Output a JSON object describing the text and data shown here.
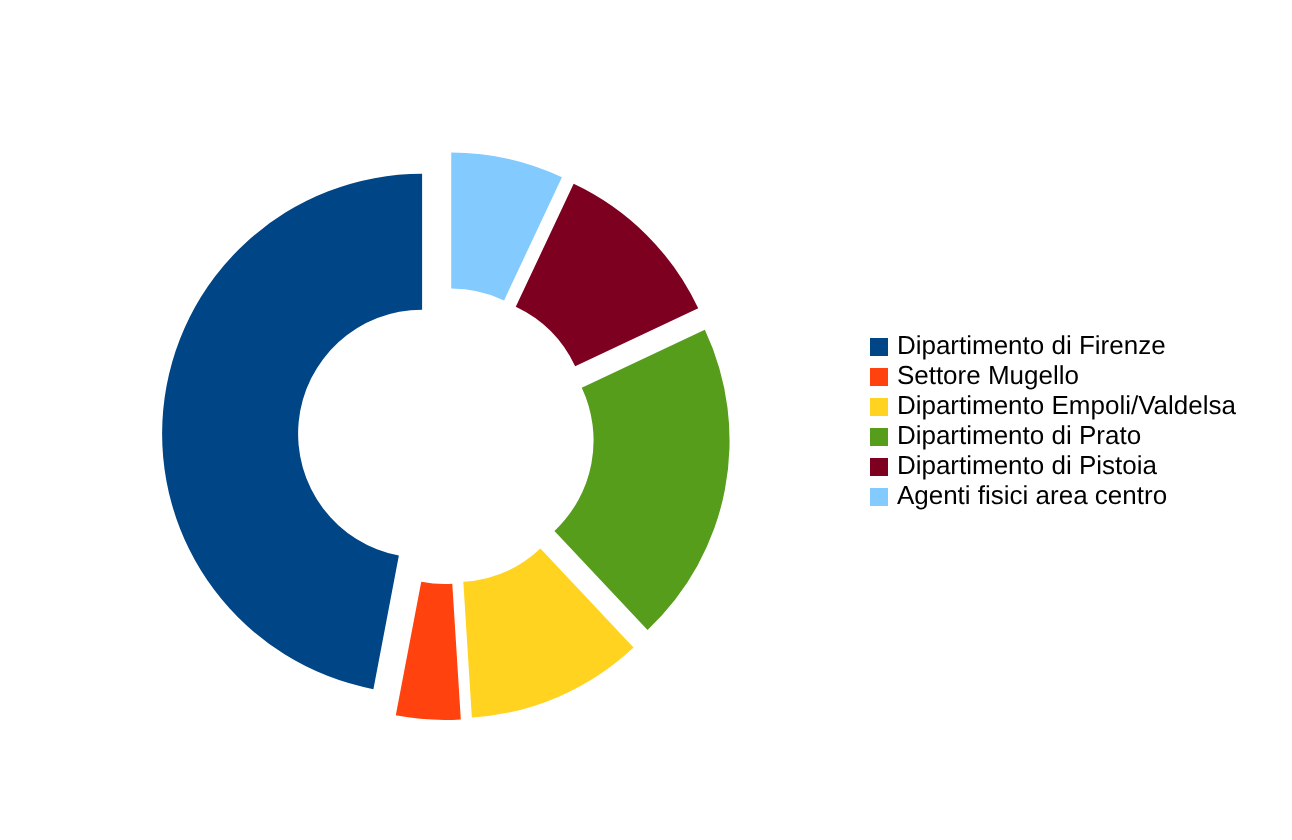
{
  "chart_data": {
    "type": "donut",
    "categories": [
      "Dipartimento di Firenze",
      "Settore Mugello",
      "Dipartimento Empoli/Valdelsa",
      "Dipartimento di Prato",
      "Dipartimento di Pistoia",
      "Agenti fisici area centro"
    ],
    "values": [
      47,
      4,
      11,
      20,
      11,
      7
    ],
    "colors": [
      "#004586",
      "#ff420e",
      "#ffd320",
      "#579d1c",
      "#7e0021",
      "#83caff"
    ],
    "legend": "right"
  }
}
